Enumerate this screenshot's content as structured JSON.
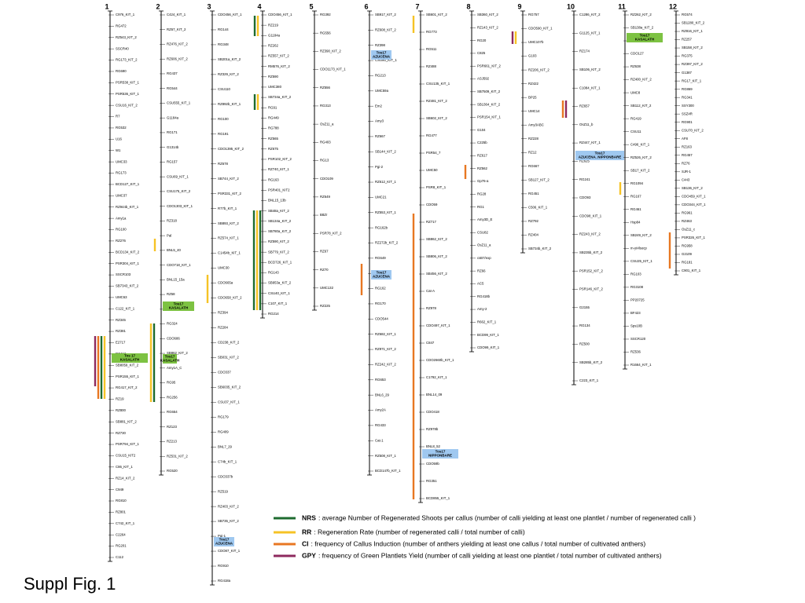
{
  "title": "Suppl Fig. 1",
  "chromosomes": [
    {
      "label": "1",
      "markers": [
        "C976_KIT_1",
        "RG472",
        "RZ543_KIT_2",
        "SSCR40",
        "RG173_KIT_2",
        "RG690",
        "PSR538_KIT_1",
        "PSR536_KIT_1",
        "CSU16_KIT_2",
        "R7",
        "RG532",
        "U16",
        "W1",
        "UMC33",
        "RG173",
        "BCD127_KIT_1",
        "UMC37",
        "RZ944b_KIT_1",
        "Amy1a",
        "RG100",
        "RZ276",
        "BCD134_KIT_2",
        "PSR304_KIT_1",
        "SSCR103",
        "SB7343_KIT_2",
        "UMC63",
        "C122_KIT_1",
        "RZ345",
        "RZ381",
        "E2717",
        "RG112",
        "SB8059_KIT_2",
        "PSR155_KIT_1",
        "RG417_KIT_2",
        "RZ19",
        "RZ800",
        "SB881_KIT_2",
        "RZ730",
        "PSR794_KIT_1",
        "CSU15_KIT2",
        "C86_KIT_1",
        "RZ14_KIT_2",
        "C949",
        "RG810",
        "RZ801",
        "C742_KIT_1",
        "C2264",
        "RG201",
        "C112"
      ],
      "boxes": [
        {
          "lines": [
            "Tos 17",
            "KASALATH"
          ],
          "color": "#7dc242"
        }
      ]
    },
    {
      "label": "2",
      "markers": [
        "C424_KIT_1",
        "RZ67_KIT_2",
        "RZ476_KIT_2",
        "RZ606_KIT_2",
        "RG437",
        "RG544",
        "CSU555_KIT_1",
        "G1184a",
        "RG171",
        "G1314b",
        "RG157",
        "CSU69_KIT_1",
        "CSU175_KIT_2",
        "CDO1303_KIT_1",
        "RZ318",
        "Pal",
        "BNL5_40",
        "CDO718_KIT_1",
        "BNL15_15a",
        "RZ58",
        "RZ807_KIT_1",
        "RG324",
        "CDO686",
        "SB862_KIT_2",
        "Amy1A_C",
        "RG95",
        "RG256",
        "RG654",
        "RZ123",
        "RZ213",
        "RZ531_KIT_2",
        "RG520"
      ],
      "boxes": [
        {
          "lines": [
            "Tos17",
            "KASALATH"
          ],
          "color": "#7dc242"
        },
        {
          "lines": [
            "Tos17",
            "KASALATH"
          ],
          "color": "#7dc242"
        }
      ]
    },
    {
      "label": "3",
      "markers": [
        "CDO456_KIT_1",
        "RG144",
        "RG348",
        "SB201a_KIT_2",
        "RZ329_KIT_2",
        "CSU110",
        "RZ892b_KIT_1",
        "RG100",
        "RG191",
        "CDO1395_KIT_2",
        "RZ678",
        "SB744_KIT_2",
        "PSR331_KIT_2",
        "R77b_KIT_1",
        "SB893_KIT_2",
        "RZ574_KIT_1",
        "C1454b_KIT_1",
        "UMC30",
        "CDO665a",
        "CDO658_KIT_2",
        "RZ394",
        "RZ284",
        "CD238_KIT_2",
        "SB031_KIT_2",
        "CDO337",
        "SB6035_KIT_2",
        "CSU37_KIT_1",
        "RG179",
        "RG409",
        "BNL7_29",
        "C74b_KIT_1",
        "CDO337b",
        "RZ519",
        "RZ403_KIT_2",
        "SB735_KIT_2",
        "Pgi-1",
        "CDO87_KIT_1",
        "RG910",
        "RG418a"
      ],
      "boxes": [
        {
          "lines": [
            "Tos17",
            "AZUCENA"
          ],
          "color": "#9fc8f0"
        }
      ]
    },
    {
      "label": "4",
      "markers": [
        "CDO456_KIT_1",
        "RZ219",
        "G1184a",
        "RZ262",
        "RZ557_KIT_2",
        "RM576_KIT_2",
        "RZ590",
        "UMC380",
        "SB734a_KIT_2",
        "RG91",
        "RG449",
        "RG788",
        "RZ565",
        "RZ675",
        "PSR102_KIT_2",
        "RZ740_KIT_1",
        "RG163",
        "PSR401_KIT2",
        "BNL15_13b",
        "SB48a_KIT_2",
        "SB134a_KIT_2",
        "SB780a_KIT_2",
        "RZ590_KIT_2",
        "SB779_KIT_2",
        "BCD726_KIT_1",
        "RG143",
        "SB953a_KIT_2",
        "CSU40_KIT_1",
        "C107_KIT_1",
        "RG214"
      ],
      "boxes": []
    },
    {
      "label": "5",
      "markers": [
        "RG392",
        "RG556",
        "RZ390_KIT_2",
        "CDO1173_KIT_1",
        "RZ556",
        "RG313",
        "OsZ11_a",
        "RG403",
        "RG13",
        "CDO109",
        "RZ649",
        "B8Zr",
        "PSR78_KIT_2",
        "RZ67",
        "RZ70",
        "UMC132",
        "RZ225"
      ],
      "boxes": []
    },
    {
      "label": "6",
      "markers": [
        "SB917_KIT_2",
        "RZ608_KIT_2",
        "RZ398",
        "CSU80_KIT_1",
        "RG213",
        "UMC59a",
        "Em2",
        "Amy3",
        "RZ667",
        "SB144_KIT_2",
        "Pgi-2",
        "RZ612_KIT_1",
        "UMC21",
        "RZ553_KIT_1",
        "RG162b",
        "RZ272b_KIT_2",
        "RG649",
        "RG424",
        "RG162",
        "RG170",
        "CDO544",
        "RZ682_KIT_1",
        "RZ971_KIT_2",
        "RZ242_KIT_2",
        "RG653",
        "BNL6_29",
        "Amy2A",
        "RG433",
        "Cat-1",
        "RZ508_KIT_1",
        "BCD147b_KIT_1"
      ],
      "boxes": [
        {
          "lines": [
            "Tos17",
            "AZUCENA"
          ],
          "color": "#9fc8f0"
        },
        {
          "lines": [
            "Tos17",
            "AZUCENA"
          ],
          "color": "#9fc8f0"
        }
      ]
    },
    {
      "label": "7",
      "markers": [
        "SB601_KIT_2",
        "RG773",
        "RG511",
        "RZ488",
        "CSU135_KIT_1",
        "RZ481_KIT_2",
        "SB602_KIT_2",
        "RG477",
        "PSR54_7",
        "UMC50",
        "PSR8_KIT_1",
        "CDO59",
        "RZ717",
        "SB862_KIT_2",
        "SB806_KIT_2",
        "SB456_KIT_2",
        "Cat-A",
        "RZ978",
        "CDO497_KIT_1",
        "C847",
        "CDO2660b_KIT_1",
        "C1792_KIT_1",
        "BNL14_09",
        "CDO418",
        "RZ978b",
        "BNL8_52",
        "CDO59b",
        "RG351",
        "BCD855_KIT_1"
      ],
      "boxes": [
        {
          "lines": [
            "Tos17",
            "NIPPONBARE"
          ],
          "color": "#9fc8f0"
        }
      ]
    },
    {
      "label": "8",
      "markers": [
        "SB360_KIT_2",
        "RZ143_KIT_2",
        "RG20",
        "C825",
        "PSR661_KIT_2",
        "ASJ592",
        "SB7509_KIT_2",
        "SB1364_KIT_2",
        "PSR154_KIT_1",
        "G104",
        "C225b",
        "RZ617",
        "RZ562",
        "Gp76-a",
        "RG28",
        "RG1",
        "Amy3D_E",
        "CSU82",
        "OsZ11_a",
        "csB7/exp",
        "RZ66",
        "AC5",
        "RG418b",
        "Amy-2",
        "R662_KIT_1",
        "BCD99_KIT_1",
        "CDO99_KIT_1"
      ],
      "boxes": []
    },
    {
      "label": "9",
      "markers": [
        "RG757",
        "CDO590_KIT_1",
        "UMC107b",
        "G103",
        "RZ206_KIT_2",
        "RZ422",
        "BP25",
        "UMC14",
        "Amy3ABC",
        "RZ228",
        "RZ12",
        "RG667",
        "SB127_KIT_2",
        "RG451",
        "C506_KIT_1",
        "RZ792",
        "RZ404",
        "SB734b_KIT_2"
      ],
      "boxes": []
    },
    {
      "label": "10",
      "markers": [
        "C1286_KIT_2",
        "G1125_KIT_1",
        "RZ174",
        "SB106_KIT_2",
        "C1084_KIT_1",
        "RZ657",
        "OsZ11_b",
        "RZ447_KIT_1",
        "RZ625",
        "RG241",
        "CDO93",
        "CDO98_KIT_1",
        "RZ243_KIT_2",
        "SB235b_KIT_2",
        "PSR152_KIT_2",
        "PSR146_KIT_2",
        "G2155",
        "RG134",
        "RZ500",
        "SB285b_KIT_2",
        "C223_KIT_1"
      ],
      "boxes": [
        {
          "lines": [
            "Tos17",
            "AZUCENA_NIPPONBARE"
          ],
          "color": "#9fc8f0"
        }
      ]
    },
    {
      "label": "11",
      "markers": [
        "RZ262_KIT_2",
        "SB138a_KIT_2",
        "G1112b",
        "CDO127",
        "RZ638",
        "RZ400_KIT_2",
        "UMC8",
        "SB112_KIT_2",
        "RG419",
        "CSU11",
        "C496_KIT_1",
        "RZ526_KIT_2",
        "SB17_KIT_2",
        "RG1094",
        "RG167",
        "RG461",
        "Hsp84",
        "SB249_KIT_2",
        "m-yt4lsocp",
        "CSU25_KIT_1",
        "RG103",
        "RG3108",
        "PP20725",
        "BF423",
        "Sps10B",
        "SSCR120",
        "RZ536",
        "R1664_KIT_1"
      ],
      "boxes": [
        {
          "lines": [
            "Tos17",
            "KASALATH"
          ],
          "color": "#7dc242"
        }
      ]
    },
    {
      "label": "12",
      "markers": [
        "RG574",
        "SB1280_KIT_2",
        "RZ816_KIT_1",
        "RZ257",
        "SB158_KIT_2",
        "RG375",
        "RZ397_KIT_2",
        "G1387",
        "RG17_KIT_1",
        "RG869",
        "RG341",
        "SSY300",
        "SSZ4R",
        "RG901",
        "CSU70_KIT_2",
        "AF8",
        "RZ163",
        "RG457",
        "RZ76",
        "SJR-1",
        "C443",
        "SB136_KIT_2",
        "CDO459_KIT_1",
        "CDO344_KIT_1",
        "RG961",
        "RZ463",
        "OsZ11_c",
        "PSR326_KIT_1",
        "RG958",
        "G2109",
        "RG181",
        "C901_KIT_1"
      ],
      "boxes": []
    }
  ],
  "legend": [
    {
      "key": "NRS",
      "text": ": average Number of Regenerated Shoots per callus (number of calli yielding at least one plantlet / number of regenerated calli )",
      "color": "#1e6b2f"
    },
    {
      "key": "RR",
      "text": ": Regeneration Rate (number of regenerated calli / total number of calli)",
      "color": "#f6c325"
    },
    {
      "key": "CI",
      "text": ": frequency of Callus Induction (number of anthers yielding at least one callus / total number of  cultivated anthers)",
      "color": "#e87722"
    },
    {
      "key": "GPY",
      "text": ": frequency of Green Plantlets Yield (number of calli yielding at least one plantlet / total number of cultivated anthers)",
      "color": "#8e2a5e"
    }
  ]
}
